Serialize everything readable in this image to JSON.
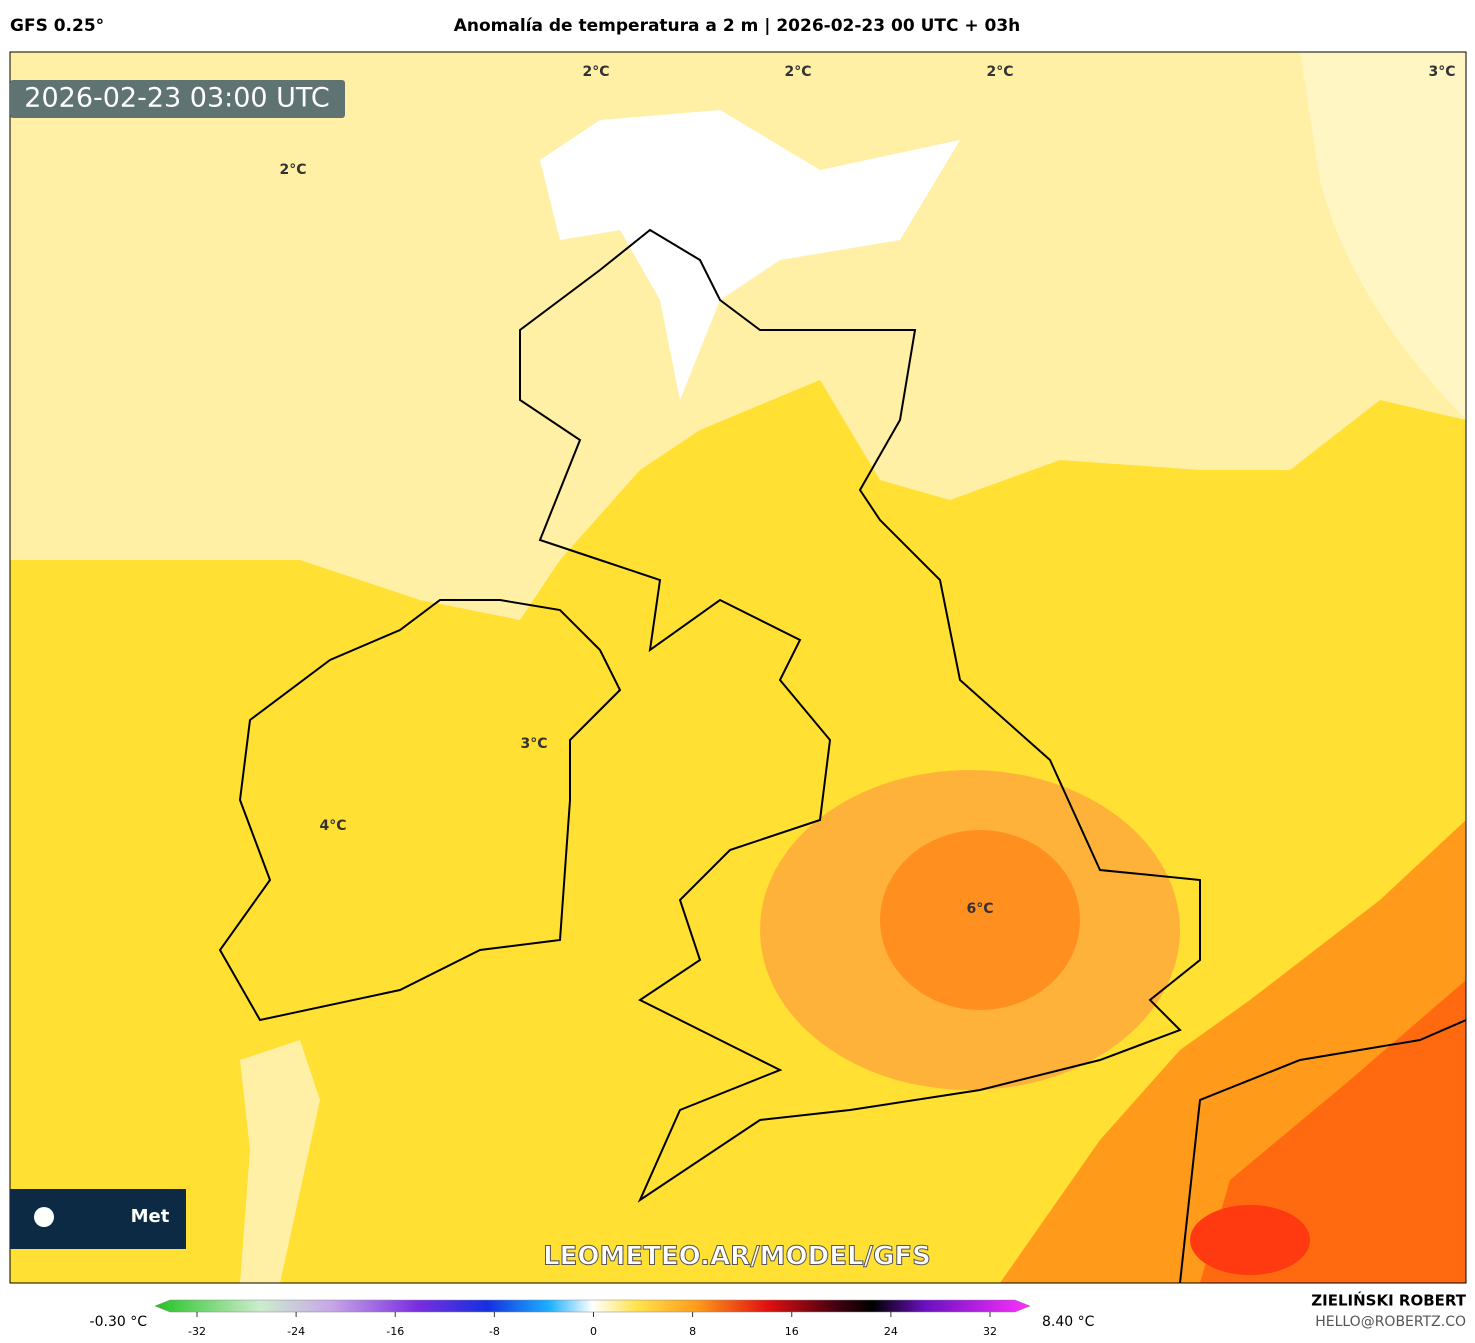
{
  "header": {
    "model": "GFS 0.25°",
    "title": "Anomalía de temperatura a 2 m | 2026-02-23 00 UTC + 03h"
  },
  "map": {
    "timestamp": "2026-02-23 03:00 UTC",
    "contour_labels": [
      "2°C",
      "2°C",
      "2°C",
      "3°C",
      "2°C",
      "3°C",
      "4°C",
      "6°C"
    ],
    "logo": "Met",
    "watermark": "LEOMETEO.AR/MODEL/GFS"
  },
  "colorbar": {
    "min_label": "-0.30 °C",
    "max_label": "8.40 °C",
    "ticks": [
      -32,
      -24,
      -16,
      -8,
      0,
      8,
      16,
      24,
      32
    ]
  },
  "credit": {
    "author": "ZIELIŃSKI ROBERT",
    "email": "HELLO@ROBERTZ.CO"
  }
}
